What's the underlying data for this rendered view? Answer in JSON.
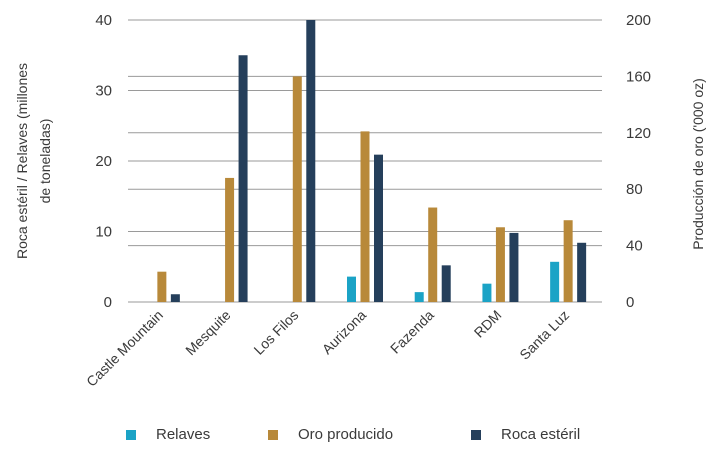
{
  "chart_data": {
    "type": "bar",
    "categories": [
      "Castle Mountain",
      "Mesquite",
      "Los Filos",
      "Aurizona",
      "Fazenda",
      "RDM",
      "Santa Luz"
    ],
    "series": [
      {
        "name": "Relaves",
        "axis": "left",
        "color": "#1ba3c6",
        "values": [
          0,
          0,
          0,
          3.6,
          1.4,
          2.6,
          5.7
        ]
      },
      {
        "name": "Oro producido",
        "axis": "right",
        "color": "#b8893a",
        "values": [
          21.5,
          88,
          160,
          121,
          67,
          53,
          58
        ]
      },
      {
        "name": "Roca estéril",
        "axis": "left",
        "color": "#253f5b",
        "values": [
          1.1,
          35,
          40,
          20.9,
          5.2,
          9.8,
          8.4
        ]
      }
    ],
    "ylabel_left": "Roca estéril / Relaves (millones de toneladas)",
    "ylabel_left_lines": [
      "Roca estéril / Relaves (millones",
      "de toneladas)"
    ],
    "ylabel_right": "Producción de oro ('000 oz)",
    "ylim_left": [
      0,
      40
    ],
    "ylim_right": [
      0,
      200
    ],
    "yticks_left": [
      "0",
      "10",
      "20",
      "30",
      "40"
    ],
    "yticks_right": [
      "0",
      "40",
      "80",
      "120",
      "160",
      "200"
    ],
    "grid": true,
    "legend_position": "bottom"
  },
  "legend": {
    "items": [
      {
        "label": "Relaves",
        "color": "#1ba3c6"
      },
      {
        "label": "Oro producido",
        "color": "#b8893a"
      },
      {
        "label": "Roca estéril",
        "color": "#253f5b"
      }
    ]
  }
}
